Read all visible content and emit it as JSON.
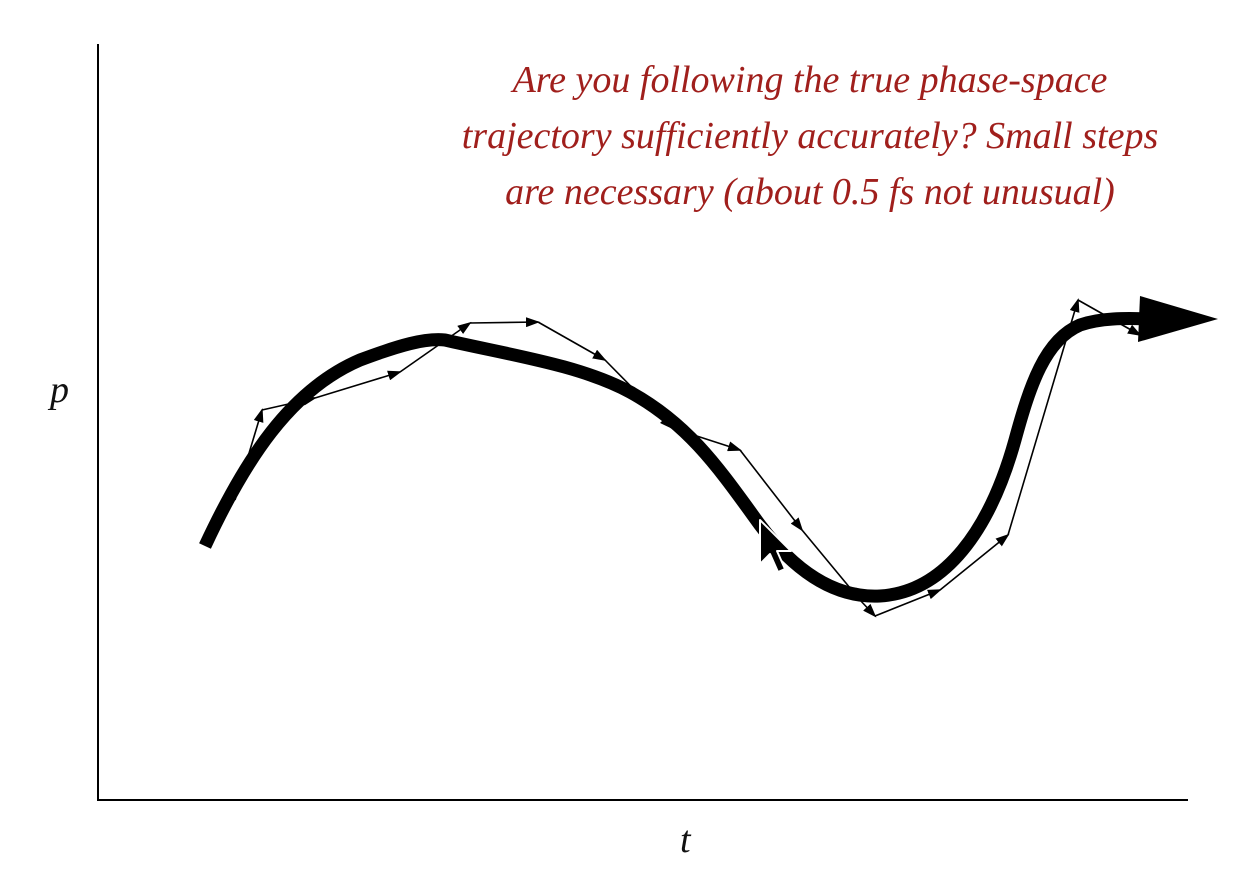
{
  "caption": {
    "line1": "Are you following the true phase-space",
    "line2": "trajectory sufficiently accurately? Small steps",
    "line3": "are necessary (about 0.5 fs not unusual)"
  },
  "axes": {
    "y_label": "p",
    "x_label": "t"
  },
  "colors": {
    "caption": "#a01f1c",
    "ink": "#000000"
  },
  "icons": {
    "cursor": "mouse-pointer-icon"
  }
}
